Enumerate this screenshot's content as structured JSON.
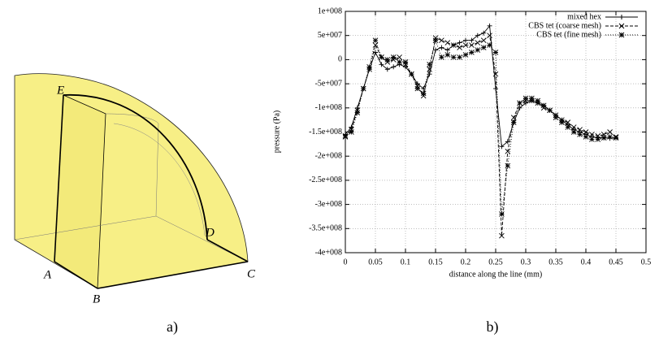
{
  "diagram": {
    "labels": [
      "E",
      "A",
      "B",
      "C",
      "D"
    ],
    "caption": "a)"
  },
  "chart_caption": "b)",
  "chart_data": {
    "type": "line",
    "x_label": "distance along the line (mm)",
    "y_label": "pressure (Pa)",
    "x": [
      0,
      0.01,
      0.02,
      0.03,
      0.04,
      0.05,
      0.06,
      0.07,
      0.08,
      0.09,
      0.1,
      0.11,
      0.12,
      0.13,
      0.14,
      0.15,
      0.16,
      0.17,
      0.18,
      0.19,
      0.2,
      0.21,
      0.22,
      0.23,
      0.24,
      0.25,
      0.26,
      0.27,
      0.28,
      0.29,
      0.3,
      0.31,
      0.32,
      0.33,
      0.34,
      0.35,
      0.36,
      0.37,
      0.38,
      0.39,
      0.4,
      0.41,
      0.42,
      0.43,
      0.44,
      0.45
    ],
    "series": [
      {
        "name": "mixed hex",
        "color": "#000000",
        "dash": "solid",
        "marker": "plus",
        "values": [
          -155000000.0,
          -140000000.0,
          -100000000.0,
          -60000000.0,
          -20000000.0,
          15000000.0,
          -10000000.0,
          -20000000.0,
          -15000000.0,
          -10000000.0,
          -15000000.0,
          -30000000.0,
          -50000000.0,
          -60000000.0,
          -30000000.0,
          20000000.0,
          25000000.0,
          20000000.0,
          30000000.0,
          35000000.0,
          40000000.0,
          40000000.0,
          50000000.0,
          55000000.0,
          70000000.0,
          -60000000.0,
          -180000000.0,
          -170000000.0,
          -130000000.0,
          -100000000.0,
          -90000000.0,
          -85000000.0,
          -90000000.0,
          -95000000.0,
          -105000000.0,
          -115000000.0,
          -125000000.0,
          -135000000.0,
          -145000000.0,
          -150000000.0,
          -155000000.0,
          -160000000.0,
          -162000000.0,
          -162000000.0,
          -163000000.0,
          -162000000.0
        ]
      },
      {
        "name": "CBS tet (coarse mesh)",
        "color": "#000000",
        "dash": "dashed",
        "marker": "cross",
        "values": [
          -160000000.0,
          -145000000.0,
          -105000000.0,
          -60000000.0,
          -20000000.0,
          30000000.0,
          5000000.0,
          -5000000.0,
          0,
          5000000.0,
          -10000000.0,
          -30000000.0,
          -55000000.0,
          -75000000.0,
          -20000000.0,
          45000000.0,
          40000000.0,
          35000000.0,
          30000000.0,
          25000000.0,
          30000000.0,
          30000000.0,
          35000000.0,
          40000000.0,
          50000000.0,
          -30000000.0,
          -365000000.0,
          -190000000.0,
          -120000000.0,
          -90000000.0,
          -85000000.0,
          -85000000.0,
          -90000000.0,
          -100000000.0,
          -105000000.0,
          -115000000.0,
          -125000000.0,
          -130000000.0,
          -140000000.0,
          -145000000.0,
          -150000000.0,
          -155000000.0,
          -158000000.0,
          -155000000.0,
          -150000000.0,
          -160000000.0
        ]
      },
      {
        "name": "CBS tet (fine mesh)",
        "color": "#000000",
        "dash": "dotted",
        "marker": "star",
        "values": [
          -158000000.0,
          -150000000.0,
          -110000000.0,
          -60000000.0,
          -15000000.0,
          40000000.0,
          5000000.0,
          0,
          5000000.0,
          -5000000.0,
          -5000000.0,
          -30000000.0,
          -60000000.0,
          -70000000.0,
          -10000000.0,
          40000000.0,
          5000000.0,
          10000000.0,
          5000000.0,
          5000000.0,
          10000000.0,
          15000000.0,
          20000000.0,
          25000000.0,
          30000000.0,
          15000000.0,
          -320000000.0,
          -220000000.0,
          -130000000.0,
          -90000000.0,
          -80000000.0,
          -80000000.0,
          -85000000.0,
          -95000000.0,
          -105000000.0,
          -120000000.0,
          -130000000.0,
          -140000000.0,
          -150000000.0,
          -155000000.0,
          -160000000.0,
          -165000000.0,
          -165000000.0,
          -162000000.0,
          -160000000.0,
          -162000000.0
        ]
      }
    ],
    "xlim": [
      0,
      0.5
    ],
    "xticks": [
      0,
      0.05,
      0.1,
      0.15,
      0.2,
      0.25,
      0.3,
      0.35,
      0.4,
      0.45,
      0.5
    ],
    "ylim": [
      -400000000.0,
      100000000.0
    ],
    "yticks": [
      {
        "value": 100000000.0,
        "label": "1e+008"
      },
      {
        "value": 50000000.0,
        "label": "5e+007"
      },
      0,
      {
        "value": -50000000.0,
        "label": "-5e+007"
      },
      {
        "value": -100000000.0,
        "label": "-1e+008"
      },
      {
        "value": -150000000.0,
        "label": "-1.5e+008"
      },
      {
        "value": -200000000.0,
        "label": "-2e+008"
      },
      {
        "value": -250000000.0,
        "label": "-2.5e+008"
      },
      {
        "value": -300000000.0,
        "label": "-3e+008"
      },
      {
        "value": -350000000.0,
        "label": "-3.5e+008"
      },
      {
        "value": -400000000.0,
        "label": "-4e+008"
      }
    ],
    "grid": true,
    "legend": "top-right"
  }
}
